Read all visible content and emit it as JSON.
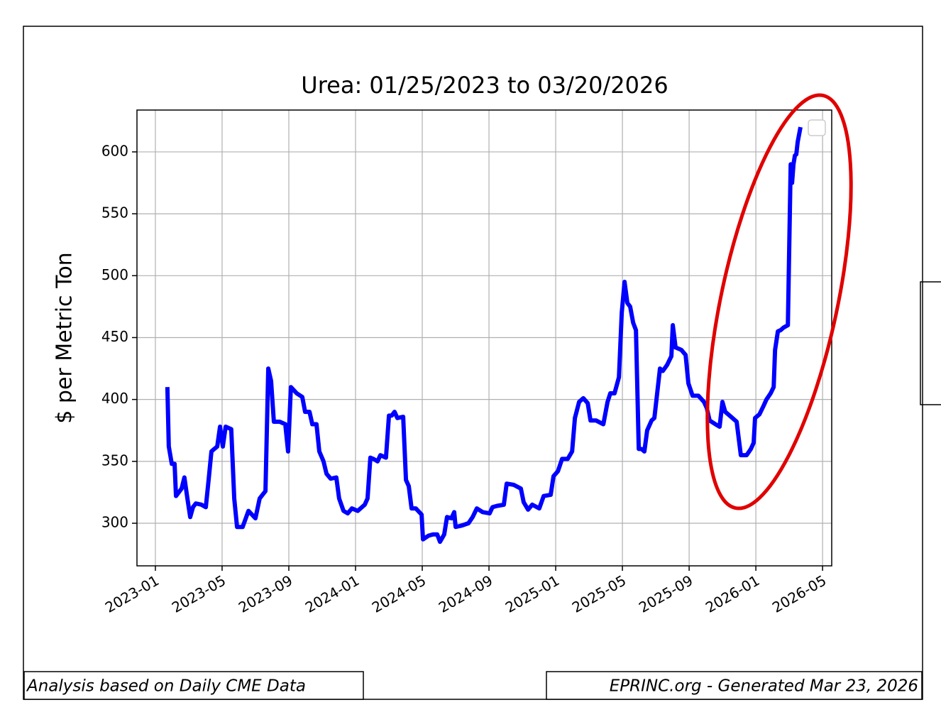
{
  "chart_data": {
    "type": "line",
    "title": "Urea: 01/25/2023 to 03/20/2026",
    "ylabel": "$ per Metric Ton",
    "annotations": [
      "Analysis based on Daily CME Data",
      "EPRINC.org - Generated Mar 23, 2026"
    ],
    "x": [
      2023.06,
      2023.067,
      2023.082,
      2023.096,
      2023.103,
      2023.117,
      2023.131,
      2023.145,
      2023.16,
      2023.174,
      2023.188,
      2023.202,
      2023.23,
      2023.252,
      2023.266,
      2023.28,
      2023.294,
      2023.309,
      2023.323,
      2023.337,
      2023.351,
      2023.379,
      2023.394,
      2023.408,
      2023.436,
      2023.465,
      2023.5,
      2023.521,
      2023.55,
      2023.564,
      2023.578,
      2023.592,
      2023.621,
      2023.649,
      2023.663,
      2023.677,
      2023.706,
      2023.734,
      2023.748,
      2023.77,
      2023.784,
      2023.805,
      2023.819,
      2023.84,
      2023.855,
      2023.876,
      2023.904,
      2023.918,
      2023.94,
      2023.961,
      2023.982,
      2024.011,
      2024.046,
      2024.06,
      2024.074,
      2024.089,
      2024.11,
      2024.124,
      2024.152,
      2024.167,
      2024.181,
      2024.195,
      2024.209,
      2024.238,
      2024.252,
      2024.266,
      2024.28,
      2024.301,
      2024.33,
      2024.337,
      2024.365,
      2024.387,
      2024.408,
      2024.422,
      2024.443,
      2024.457,
      2024.479,
      2024.493,
      2024.5,
      2024.528,
      2024.564,
      2024.585,
      2024.606,
      2024.635,
      2024.67,
      2024.684,
      2024.706,
      2024.741,
      2024.755,
      2024.791,
      2024.826,
      2024.84,
      2024.862,
      2024.883,
      2024.918,
      2024.94,
      2024.975,
      2024.989,
      2025.011,
      2025.032,
      2025.06,
      2025.082,
      2025.096,
      2025.117,
      2025.138,
      2025.16,
      2025.174,
      2025.202,
      2025.238,
      2025.259,
      2025.273,
      2025.294,
      2025.316,
      2025.33,
      2025.344,
      2025.358,
      2025.372,
      2025.387,
      2025.401,
      2025.415,
      2025.429,
      2025.443,
      2025.457,
      2025.479,
      2025.493,
      2025.507,
      2025.521,
      2025.535,
      2025.557,
      2025.578,
      2025.585,
      2025.599,
      2025.628,
      2025.649,
      2025.663,
      2025.684,
      2025.713,
      2025.741,
      2025.755,
      2025.769,
      2025.798,
      2025.819,
      2025.833,
      2025.847,
      2025.876,
      2025.904,
      2025.925,
      2025.954,
      2025.975,
      2025.989,
      2025.996,
      2026.018,
      2026.039,
      2026.053,
      2026.074,
      2026.089,
      2026.096,
      2026.11,
      2026.124,
      2026.138,
      2026.16,
      2026.174,
      2026.181,
      2026.188,
      2026.195,
      2026.202,
      2026.209,
      2026.223
    ],
    "series": [
      {
        "color": "#0000ff",
        "values": [
          410,
          362,
          348,
          348,
          322,
          325,
          328,
          337,
          320,
          305,
          313,
          316,
          315,
          313,
          335,
          358,
          360,
          362,
          378,
          362,
          378,
          376,
          320,
          297,
          297,
          310,
          304,
          320,
          326,
          425,
          415,
          382,
          382,
          380,
          358,
          410,
          405,
          402,
          390,
          390,
          380,
          380,
          358,
          350,
          340,
          336,
          337,
          320,
          310,
          308,
          312,
          310,
          315,
          320,
          353,
          352,
          350,
          355,
          353,
          387,
          387,
          390,
          385,
          386,
          335,
          330,
          312,
          312,
          307,
          287,
          290,
          291,
          291,
          285,
          291,
          305,
          304,
          309,
          297,
          298,
          300,
          305,
          312,
          309,
          308,
          313,
          314,
          315,
          332,
          331,
          328,
          317,
          311,
          315,
          312,
          322,
          323,
          338,
          342,
          352,
          352,
          358,
          385,
          398,
          401,
          397,
          383,
          383,
          380,
          398,
          405,
          405,
          418,
          470,
          495,
          478,
          475,
          462,
          456,
          360,
          360,
          358,
          375,
          383,
          385,
          405,
          425,
          423,
          428,
          435,
          460,
          442,
          440,
          436,
          413,
          403,
          403,
          398,
          393,
          383,
          380,
          378,
          398,
          390,
          386,
          382,
          355,
          355,
          360,
          365,
          385,
          388,
          395,
          400,
          405,
          410,
          440,
          455,
          456,
          458,
          460,
          590,
          575,
          590,
          597,
          598,
          608,
          620
        ]
      }
    ],
    "xlim": [
      2022.908,
      2026.379
    ],
    "ylim": [
      265.6,
      633.8
    ],
    "xticks": [
      {
        "value": 2023,
        "label": "2023-01"
      },
      {
        "value": 2023.3333,
        "label": "2023-05"
      },
      {
        "value": 2023.6667,
        "label": "2023-09"
      },
      {
        "value": 2024,
        "label": "2024-01"
      },
      {
        "value": 2024.3333,
        "label": "2024-05"
      },
      {
        "value": 2024.6667,
        "label": "2024-09"
      },
      {
        "value": 2025,
        "label": "2025-01"
      },
      {
        "value": 2025.3333,
        "label": "2025-05"
      },
      {
        "value": 2025.6667,
        "label": "2025-09"
      },
      {
        "value": 2026,
        "label": "2026-01"
      },
      {
        "value": 2026.3333,
        "label": "2026-05"
      }
    ],
    "yticks": [
      300,
      350,
      400,
      450,
      500,
      550,
      600
    ],
    "grid": true
  }
}
